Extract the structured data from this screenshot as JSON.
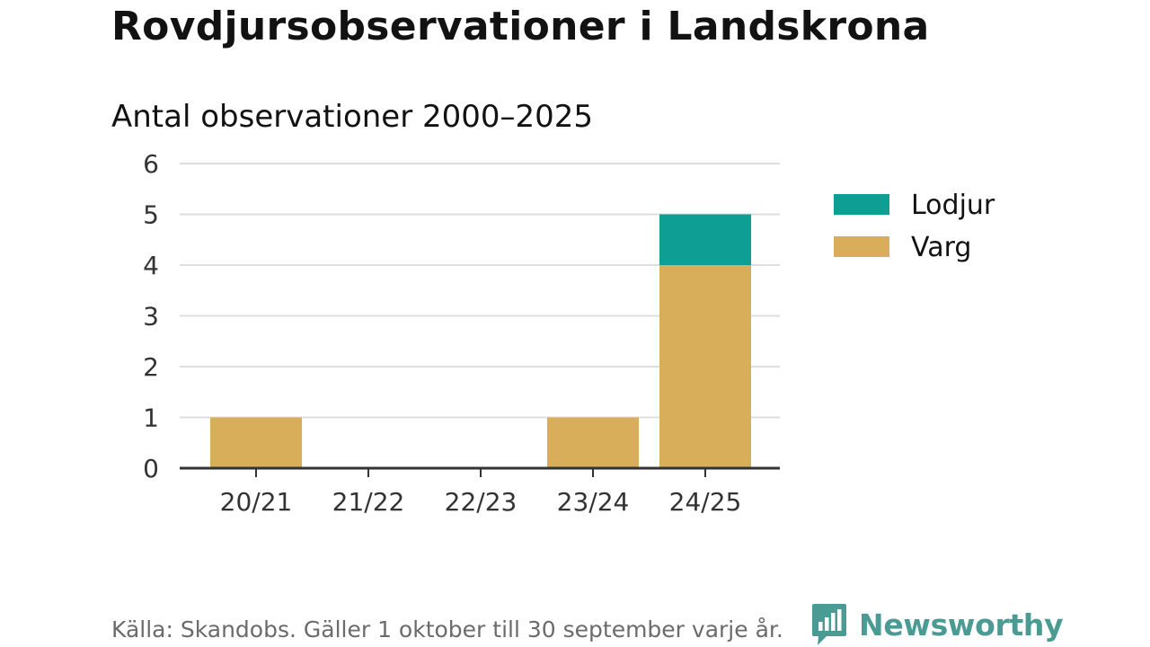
{
  "header": {
    "title": "Rovdjursobservationer i Landskrona",
    "subtitle": "Antal observationer 2000–2025"
  },
  "chart_data": {
    "type": "bar",
    "stacked": true,
    "categories": [
      "20/21",
      "21/22",
      "22/23",
      "23/24",
      "24/25"
    ],
    "series": [
      {
        "name": "Varg",
        "color": "#d9ae5b",
        "values": [
          1,
          0,
          0,
          1,
          4
        ]
      },
      {
        "name": "Lodjur",
        "color": "#0f9e94",
        "values": [
          0,
          0,
          0,
          0,
          1
        ]
      }
    ],
    "legend_order": [
      "Lodjur",
      "Varg"
    ],
    "legend_position": "right",
    "ylim": [
      0,
      6
    ],
    "yticks": [
      0,
      1,
      2,
      3,
      4,
      5,
      6
    ],
    "grid": true,
    "xlabel": "",
    "ylabel": ""
  },
  "footer": {
    "source": "Källa: Skandobs. Gäller 1 oktober till 30 september varje år."
  },
  "brand": {
    "name": "Newsworthy",
    "logo_icon": "bar-chart-speech-bubble-icon",
    "color": "#4a9b94"
  }
}
